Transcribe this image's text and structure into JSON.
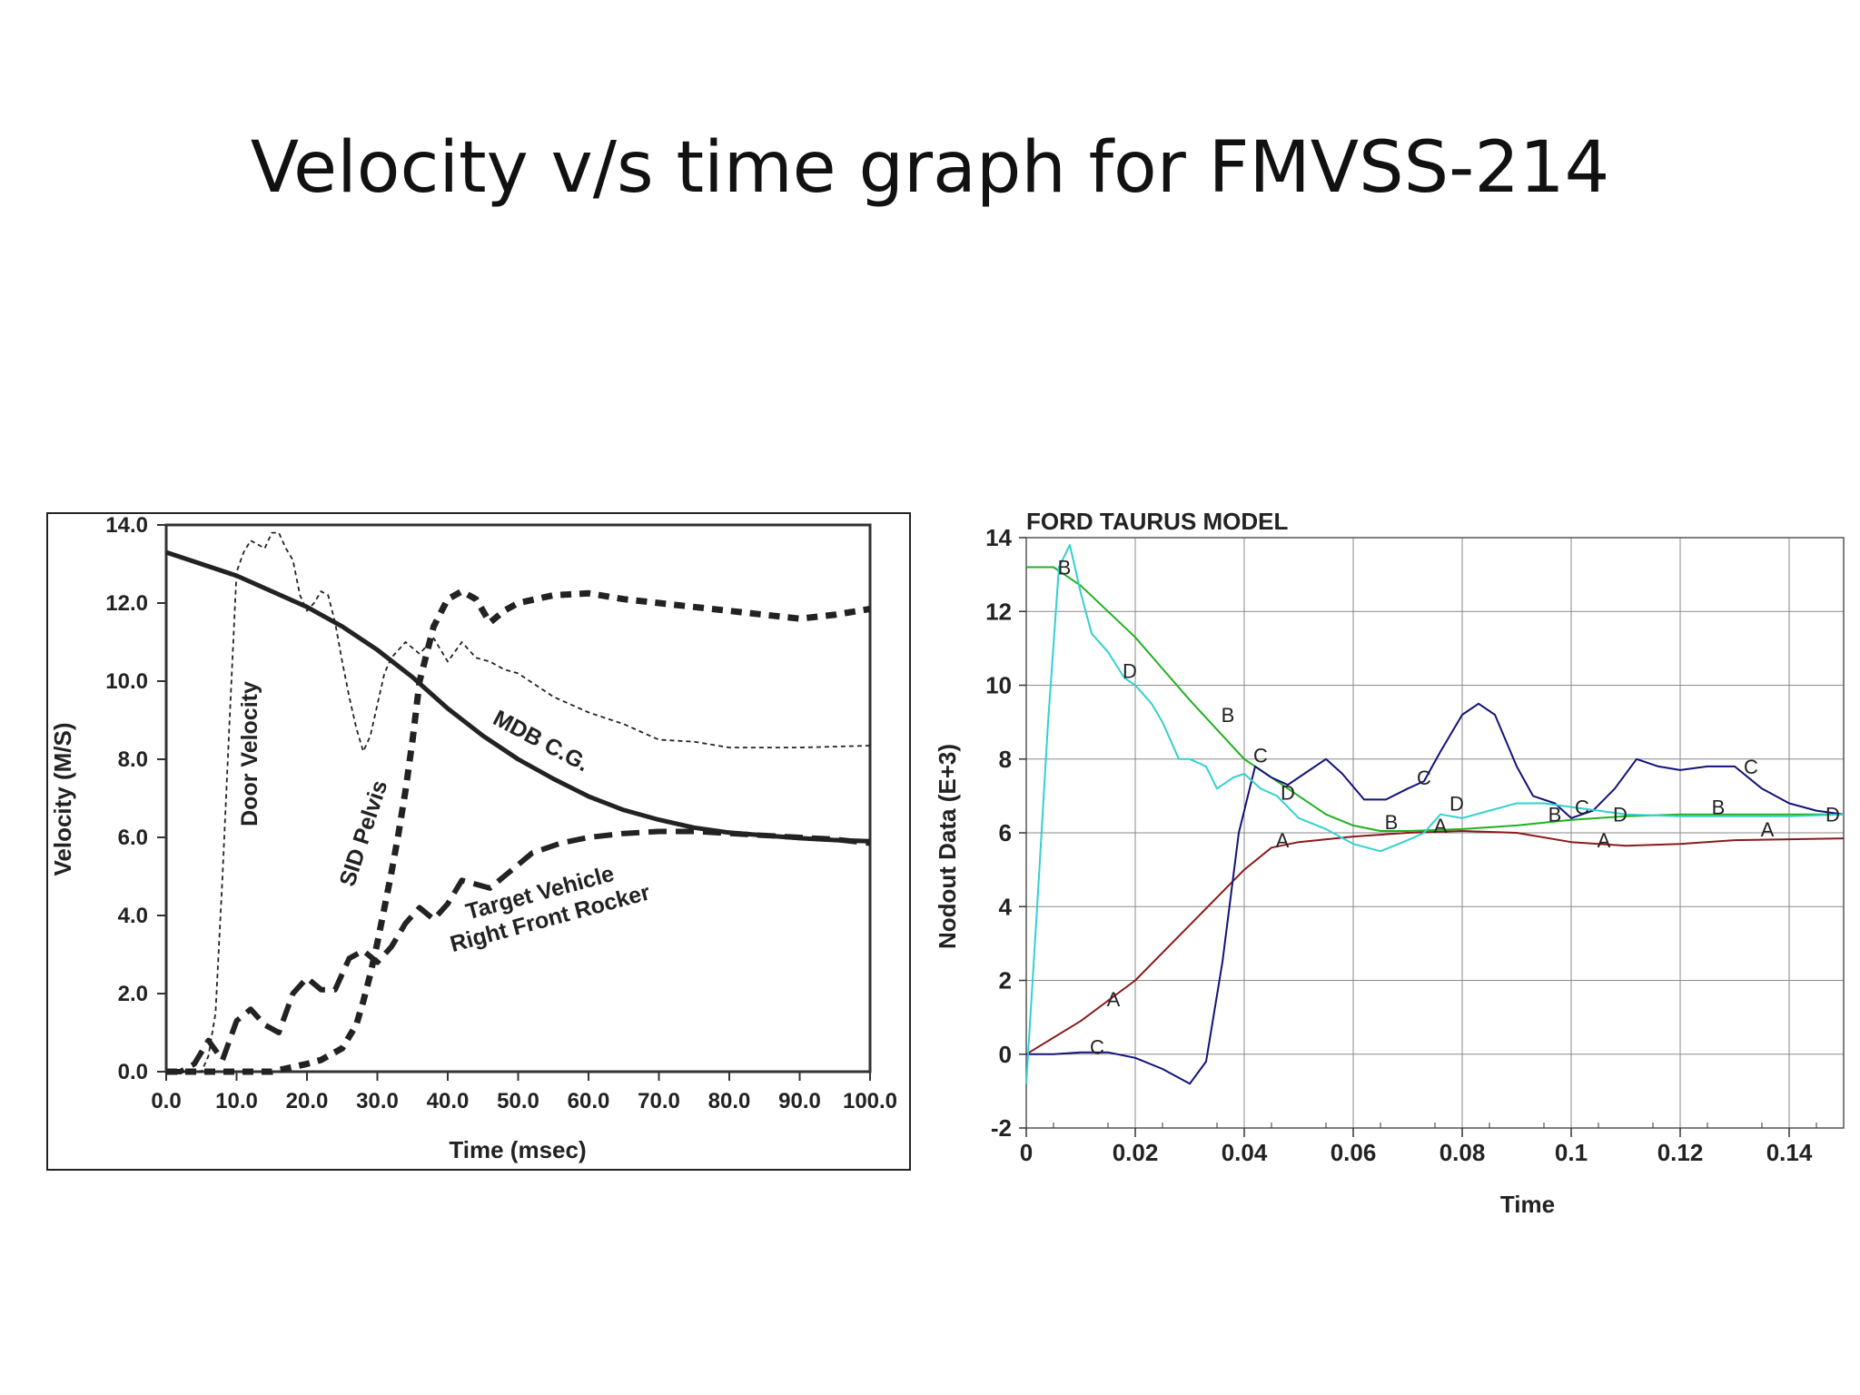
{
  "slide_title": "Velocity v/s time graph for FMVSS-214",
  "chart_data": [
    {
      "type": "line",
      "title": "",
      "xlabel": "Time (msec)",
      "ylabel": "Velocity (M/S)",
      "xlim": [
        0,
        100
      ],
      "ylim": [
        0,
        14
      ],
      "x_ticks": [
        "0.0",
        "10.0",
        "20.0",
        "30.0",
        "40.0",
        "50.0",
        "60.0",
        "70.0",
        "80.0",
        "90.0",
        "100.0"
      ],
      "y_ticks": [
        "0.0",
        "2.0",
        "4.0",
        "6.0",
        "8.0",
        "10.0",
        "12.0",
        "14.0"
      ],
      "grid": false,
      "series": [
        {
          "name": "MDB C.G.",
          "x": [
            0,
            10,
            20,
            25,
            30,
            35,
            40,
            45,
            50,
            55,
            60,
            65,
            70,
            75,
            80,
            85,
            90,
            95,
            100
          ],
          "y": [
            13.3,
            12.7,
            11.9,
            11.4,
            10.8,
            10.1,
            9.3,
            8.6,
            8.0,
            7.5,
            7.05,
            6.7,
            6.45,
            6.25,
            6.12,
            6.05,
            5.98,
            5.93,
            5.9
          ]
        },
        {
          "name": "Door Velocity",
          "x": [
            0,
            5,
            6,
            7,
            8,
            9,
            10,
            11,
            12,
            14,
            15,
            16,
            17,
            18,
            19,
            20,
            21,
            22,
            23,
            24,
            25,
            26,
            27,
            28,
            29,
            30,
            31,
            32,
            34,
            36,
            38,
            40,
            42,
            44,
            46,
            48,
            50,
            55,
            60,
            65,
            70,
            75,
            80,
            85,
            90,
            100
          ],
          "y": [
            0,
            0,
            0.4,
            1.5,
            5,
            9,
            12.8,
            13.3,
            13.6,
            13.4,
            13.8,
            13.8,
            13.4,
            13.1,
            12.2,
            11.8,
            12.0,
            12.3,
            12.2,
            11.5,
            10.5,
            9.6,
            8.8,
            8.2,
            8.6,
            9.4,
            10.2,
            10.6,
            11.0,
            10.7,
            11.1,
            10.5,
            11.0,
            10.6,
            10.5,
            10.3,
            10.2,
            9.6,
            9.2,
            8.9,
            8.5,
            8.45,
            8.3,
            8.3,
            8.3,
            8.35
          ]
        },
        {
          "name": "SID Pelvis",
          "x": [
            0,
            5,
            10,
            15,
            20,
            22,
            25,
            27,
            28,
            29,
            30,
            31,
            32,
            33,
            34,
            35,
            36,
            38,
            40,
            42,
            44,
            46,
            48,
            50,
            55,
            60,
            65,
            70,
            75,
            80,
            85,
            90,
            95,
            100
          ],
          "y": [
            0,
            0,
            0,
            0,
            0.2,
            0.3,
            0.6,
            1.2,
            1.8,
            2.5,
            3.3,
            4.2,
            5.1,
            6.1,
            7.2,
            8.5,
            10.0,
            11.4,
            12.1,
            12.3,
            12.1,
            11.5,
            11.8,
            12.0,
            12.2,
            12.25,
            12.1,
            12.0,
            11.9,
            11.8,
            11.7,
            11.6,
            11.7,
            11.85
          ]
        },
        {
          "name": "Target Vehicle Right Front Rocker",
          "x": [
            0,
            2,
            4,
            6,
            8,
            10,
            12,
            14,
            16,
            18,
            20,
            22,
            24,
            26,
            28,
            30,
            32,
            34,
            36,
            38,
            40,
            42,
            44,
            46,
            48,
            50,
            52,
            56,
            60,
            65,
            70,
            75,
            80,
            85,
            90,
            95,
            100
          ],
          "y": [
            0,
            0,
            0.2,
            0.8,
            0.3,
            1.3,
            1.6,
            1.2,
            1.0,
            2.0,
            2.4,
            2.1,
            2.1,
            2.9,
            3.1,
            2.8,
            3.2,
            3.8,
            4.2,
            3.9,
            4.3,
            4.9,
            4.8,
            4.7,
            5.0,
            5.3,
            5.6,
            5.85,
            6.0,
            6.1,
            6.15,
            6.15,
            6.1,
            6.05,
            6.0,
            5.95,
            5.85
          ]
        }
      ]
    },
    {
      "type": "line",
      "title": "FORD TAURUS MODEL",
      "xlabel": "Time",
      "ylabel": "Nodout Data (E+3)",
      "xlim": [
        0,
        0.15
      ],
      "ylim": [
        -2,
        14
      ],
      "x_ticks": [
        "0",
        "0.02",
        "0.04",
        "0.06",
        "0.08",
        "0.1",
        "0.12",
        "0.14"
      ],
      "y_ticks": [
        "-2",
        "0",
        "2",
        "4",
        "6",
        "8",
        "10",
        "12",
        "14"
      ],
      "grid": true,
      "colors": {
        "A": "#8b1a1a",
        "B": "#22b022",
        "C": "#12127a",
        "D": "#33d0d0"
      },
      "series": [
        {
          "name": "A",
          "x": [
            0,
            0.01,
            0.02,
            0.03,
            0.04,
            0.045,
            0.05,
            0.06,
            0.07,
            0.08,
            0.09,
            0.1,
            0.11,
            0.12,
            0.13,
            0.15
          ],
          "y": [
            0,
            0.9,
            2.0,
            3.5,
            5.0,
            5.6,
            5.75,
            5.9,
            6.0,
            6.05,
            6.0,
            5.75,
            5.65,
            5.7,
            5.8,
            5.85
          ]
        },
        {
          "name": "B",
          "x": [
            0,
            0.005,
            0.01,
            0.02,
            0.03,
            0.04,
            0.045,
            0.05,
            0.055,
            0.06,
            0.065,
            0.07,
            0.08,
            0.09,
            0.1,
            0.11,
            0.12,
            0.13,
            0.14,
            0.15
          ],
          "y": [
            13.2,
            13.2,
            12.7,
            11.3,
            9.6,
            8.0,
            7.5,
            7.0,
            6.5,
            6.2,
            6.05,
            6.05,
            6.1,
            6.2,
            6.35,
            6.45,
            6.5,
            6.5,
            6.5,
            6.5
          ]
        },
        {
          "name": "C",
          "x": [
            0,
            0.005,
            0.01,
            0.015,
            0.02,
            0.025,
            0.03,
            0.033,
            0.036,
            0.039,
            0.042,
            0.045,
            0.048,
            0.051,
            0.055,
            0.058,
            0.062,
            0.066,
            0.07,
            0.073,
            0.076,
            0.08,
            0.083,
            0.086,
            0.09,
            0.093,
            0.097,
            0.1,
            0.104,
            0.108,
            0.112,
            0.116,
            0.12,
            0.125,
            0.13,
            0.135,
            0.14,
            0.145,
            0.15
          ],
          "y": [
            0,
            0,
            0.05,
            0.05,
            -0.1,
            -0.4,
            -0.8,
            -0.2,
            2.5,
            6.0,
            7.8,
            7.5,
            7.3,
            7.6,
            8.0,
            7.6,
            6.9,
            6.9,
            7.2,
            7.4,
            8.2,
            9.2,
            9.5,
            9.2,
            7.8,
            7.0,
            6.8,
            6.4,
            6.6,
            7.2,
            8.0,
            7.8,
            7.7,
            7.8,
            7.8,
            7.2,
            6.8,
            6.6,
            6.5
          ]
        },
        {
          "name": "D",
          "x": [
            0,
            0.002,
            0.004,
            0.006,
            0.008,
            0.01,
            0.012,
            0.015,
            0.018,
            0.02,
            0.023,
            0.025,
            0.028,
            0.03,
            0.033,
            0.035,
            0.038,
            0.04,
            0.043,
            0.046,
            0.05,
            0.055,
            0.06,
            0.065,
            0.07,
            0.073,
            0.076,
            0.08,
            0.085,
            0.09,
            0.095,
            0.1,
            0.105,
            0.11,
            0.12,
            0.13,
            0.14,
            0.15
          ],
          "y": [
            -0.8,
            4,
            9,
            13.2,
            13.8,
            12.5,
            11.4,
            10.9,
            10.2,
            10.0,
            9.5,
            9.0,
            8.0,
            8.0,
            7.8,
            7.2,
            7.5,
            7.6,
            7.2,
            7.0,
            6.4,
            6.1,
            5.7,
            5.5,
            5.8,
            6.0,
            6.5,
            6.4,
            6.6,
            6.8,
            6.8,
            6.7,
            6.6,
            6.5,
            6.45,
            6.45,
            6.45,
            6.5
          ]
        }
      ],
      "series_markers": [
        {
          "series": "B",
          "label": "B",
          "x": 0.007,
          "y": 13.2
        },
        {
          "series": "D",
          "label": "D",
          "x": 0.019,
          "y": 10.4
        },
        {
          "series": "B",
          "label": "B",
          "x": 0.037,
          "y": 9.2
        },
        {
          "series": "C",
          "label": "C",
          "x": 0.043,
          "y": 8.1
        },
        {
          "series": "D",
          "label": "D",
          "x": 0.048,
          "y": 7.1
        },
        {
          "series": "A",
          "label": "A",
          "x": 0.047,
          "y": 5.8
        },
        {
          "series": "C",
          "label": "C",
          "x": 0.073,
          "y": 7.5
        },
        {
          "series": "D",
          "label": "D",
          "x": 0.079,
          "y": 6.8
        },
        {
          "series": "B",
          "label": "B",
          "x": 0.067,
          "y": 6.3
        },
        {
          "series": "A",
          "label": "A",
          "x": 0.076,
          "y": 6.2
        },
        {
          "series": "B",
          "label": "B",
          "x": 0.097,
          "y": 6.5
        },
        {
          "series": "C",
          "label": "C",
          "x": 0.102,
          "y": 6.7
        },
        {
          "series": "D",
          "label": "D",
          "x": 0.109,
          "y": 6.5
        },
        {
          "series": "A",
          "label": "A",
          "x": 0.106,
          "y": 5.8
        },
        {
          "series": "B",
          "label": "B",
          "x": 0.127,
          "y": 6.7
        },
        {
          "series": "C",
          "label": "C",
          "x": 0.133,
          "y": 7.8
        },
        {
          "series": "D",
          "label": "D",
          "x": 0.148,
          "y": 6.5
        },
        {
          "series": "A",
          "label": "A",
          "x": 0.136,
          "y": 6.1
        },
        {
          "series": "A",
          "label": "A",
          "x": 0.016,
          "y": 1.5
        },
        {
          "series": "C",
          "label": "C",
          "x": 0.013,
          "y": 0.2
        }
      ]
    }
  ]
}
